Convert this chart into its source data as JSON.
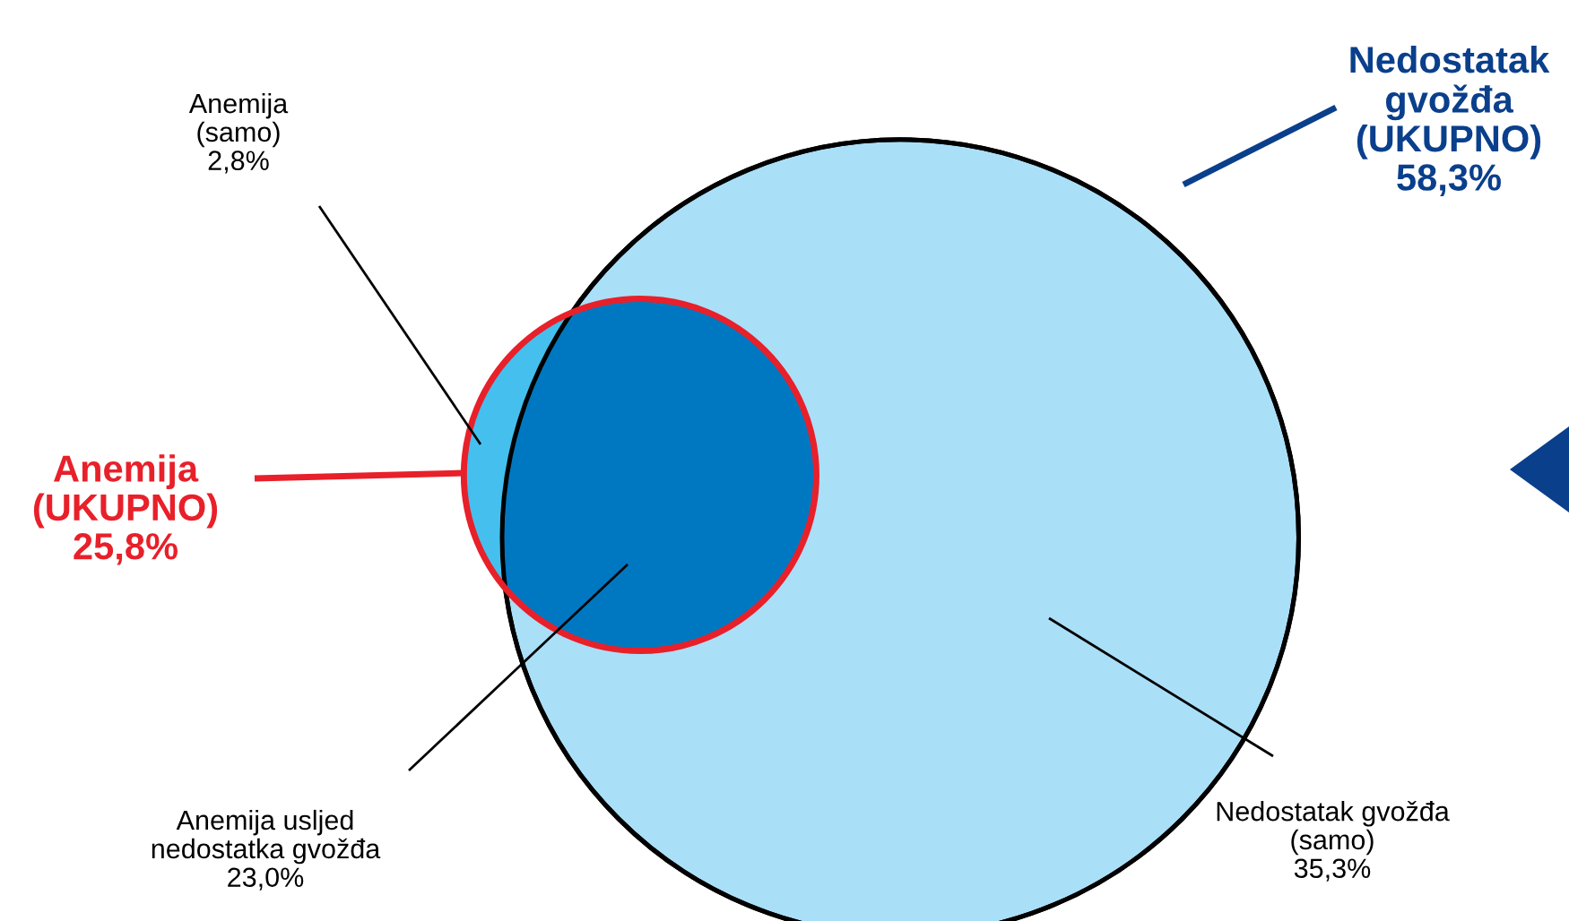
{
  "chart_data": {
    "type": "other",
    "categories": [
      "Anemija\n(samo)",
      "Anemija usljed\nnedostatka gvožđa",
      "Nedostatak gvožđa\n(samo)",
      "Anemija\n(UKUPNO)",
      "Nedostatak\ngvožđa\n(UKUPNO)"
    ],
    "values": [
      2.8,
      23.0,
      35.3,
      25.8,
      58.3
    ],
    "value_labels": [
      "2,8%",
      "23,0%",
      "35,3%",
      "25,8%",
      "58,3%"
    ],
    "colors": [
      "#45c0ee",
      "#0078c1",
      "#aadff8",
      "#e8202a",
      "#0a3f8c"
    ]
  }
}
